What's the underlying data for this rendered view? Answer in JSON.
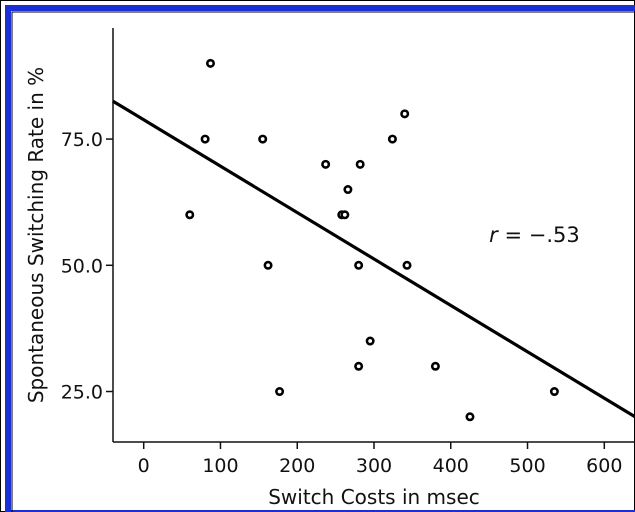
{
  "colors": {
    "frame_blue": "#1a2fd6",
    "frame_black": "#000000",
    "ink": "#111111",
    "background": "#ffffff"
  },
  "chart_data": {
    "type": "scatter",
    "title": "",
    "xlabel": "Switch Costs in msec",
    "ylabel": "Spontaneous Switching Rate in %",
    "xlim": [
      -40,
      640
    ],
    "ylim": [
      15,
      97
    ],
    "x_ticks": [
      0,
      100,
      200,
      300,
      400,
      500,
      600
    ],
    "x_tick_labels": [
      "0",
      "100",
      "200",
      "300",
      "400",
      "500",
      "600"
    ],
    "y_ticks": [
      25,
      50,
      75
    ],
    "y_tick_labels": [
      "25.0",
      "50.0",
      "75.0"
    ],
    "grid": false,
    "points": [
      {
        "x": 87,
        "y": 90
      },
      {
        "x": 80,
        "y": 75
      },
      {
        "x": 155,
        "y": 75
      },
      {
        "x": 60,
        "y": 60
      },
      {
        "x": 162,
        "y": 50
      },
      {
        "x": 177,
        "y": 25
      },
      {
        "x": 237,
        "y": 70
      },
      {
        "x": 282,
        "y": 70
      },
      {
        "x": 266,
        "y": 65
      },
      {
        "x": 258,
        "y": 60
      },
      {
        "x": 262,
        "y": 60
      },
      {
        "x": 280,
        "y": 50
      },
      {
        "x": 324,
        "y": 75
      },
      {
        "x": 340,
        "y": 80
      },
      {
        "x": 343,
        "y": 50
      },
      {
        "x": 295,
        "y": 35
      },
      {
        "x": 280,
        "y": 30
      },
      {
        "x": 380,
        "y": 30
      },
      {
        "x": 425,
        "y": 20
      },
      {
        "x": 535,
        "y": 25
      }
    ],
    "regression_line": {
      "x": [
        -40,
        640
      ],
      "y": [
        82.5,
        20
      ]
    },
    "annotation": {
      "r_symbol": "r",
      "text": " = −.53",
      "x": 450,
      "y": 56
    }
  }
}
